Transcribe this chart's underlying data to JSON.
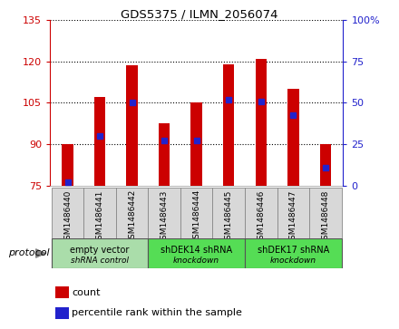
{
  "title": "GDS5375 / ILMN_2056074",
  "samples": [
    "GSM1486440",
    "GSM1486441",
    "GSM1486442",
    "GSM1486443",
    "GSM1486444",
    "GSM1486445",
    "GSM1486446",
    "GSM1486447",
    "GSM1486448"
  ],
  "bar_tops": [
    90.0,
    107.0,
    118.5,
    97.5,
    105.2,
    119.0,
    121.0,
    110.0,
    90.2
  ],
  "bar_bottom": 75.0,
  "blue_dot_y": [
    76.5,
    93.0,
    105.0,
    91.5,
    91.5,
    106.0,
    105.5,
    100.5,
    81.5
  ],
  "left_ylim": [
    75,
    135
  ],
  "left_yticks": [
    75,
    90,
    105,
    120,
    135
  ],
  "right_ylim": [
    0,
    100
  ],
  "right_yticks": [
    0,
    25,
    50,
    75,
    100
  ],
  "right_yticklabels": [
    "0",
    "25",
    "50",
    "75",
    "100%"
  ],
  "bar_color": "#cc0000",
  "dot_color": "#2222cc",
  "protocol_groups": [
    {
      "label": "empty vector\nshRNA control",
      "start": 0,
      "end": 3,
      "color": "#aaddaa"
    },
    {
      "label": "shDEK14 shRNA\nknockdown",
      "start": 3,
      "end": 6,
      "color": "#55dd55"
    },
    {
      "label": "shDEK17 shRNA\nknockdown",
      "start": 6,
      "end": 9,
      "color": "#55dd55"
    }
  ],
  "legend_count_color": "#cc0000",
  "legend_pct_color": "#2222cc",
  "left_tick_color": "#cc0000",
  "right_tick_color": "#2222cc",
  "bar_width": 0.35,
  "sample_box_color": "#d8d8d8",
  "sample_box_edge": "#888888"
}
